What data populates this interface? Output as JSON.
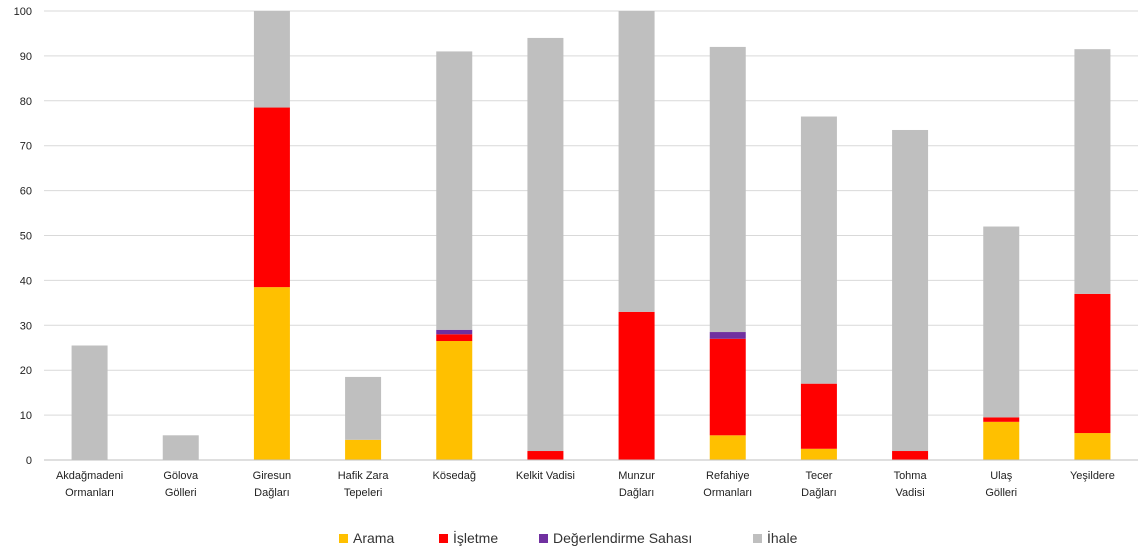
{
  "chart_data": {
    "type": "bar",
    "stacked": true,
    "categories": [
      "Akdağmadeni Ormanları",
      "Gölova Gölleri",
      "Giresun Dağları",
      "Hafik Zara Tepeleri",
      "Kösedağ",
      "Kelkit Vadisi",
      "Munzur Dağları",
      "Refahiye Ormanları",
      "Tecer Dağları",
      "Tohma Vadisi",
      "Ulaş Gölleri",
      "Yeşildere"
    ],
    "category_label_lines": [
      [
        "Akdağmadeni",
        "Ormanları"
      ],
      [
        "Gölova",
        "Gölleri"
      ],
      [
        "Giresun",
        "Dağları"
      ],
      [
        "Hafik Zara",
        "Tepeleri"
      ],
      [
        "Kösedağ"
      ],
      [
        "Kelkit Vadisi"
      ],
      [
        "Munzur",
        "Dağları"
      ],
      [
        "Refahiye",
        "Ormanları"
      ],
      [
        "Tecer",
        "Dağları"
      ],
      [
        "Tohma",
        "Vadisi"
      ],
      [
        "Ulaş",
        "Gölleri"
      ],
      [
        "Yeşildere"
      ]
    ],
    "series": [
      {
        "name": "Arama",
        "color": "#FFC000",
        "values": [
          0,
          0,
          38.5,
          4.5,
          26.5,
          0,
          0,
          5.5,
          2.5,
          0,
          8.5,
          6
        ]
      },
      {
        "name": "İşletme",
        "color": "#FF0000",
        "values": [
          0,
          0,
          40,
          0,
          1.5,
          2,
          33,
          21.5,
          14.5,
          2,
          1,
          31
        ]
      },
      {
        "name": "Değerlendirme Sahası",
        "color": "#7030A0",
        "values": [
          0,
          0,
          0,
          0,
          1,
          0,
          0,
          1.5,
          0,
          0,
          0,
          0
        ]
      },
      {
        "name": "İhale",
        "color": "#BFBFBF",
        "values": [
          25.5,
          5.5,
          21.5,
          14,
          62,
          92,
          67,
          63.5,
          59.5,
          71.5,
          42.5,
          54.5
        ]
      }
    ],
    "ylim": [
      0,
      100
    ],
    "yticks": [
      0,
      10,
      20,
      30,
      40,
      50,
      60,
      70,
      80,
      90,
      100
    ],
    "grid": true,
    "legend_position": "bottom",
    "title": "",
    "xlabel": "",
    "ylabel": ""
  }
}
